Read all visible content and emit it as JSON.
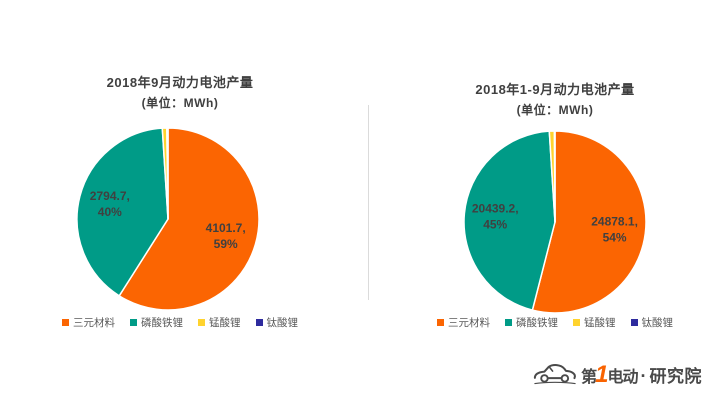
{
  "page": {
    "background": "#FFFFFF",
    "divider_color": "#DBDBDB",
    "text_color": "#404040"
  },
  "chart_data": [
    {
      "type": "pie",
      "title": "2018年9月动力电池产量",
      "subtitle": "(单位：MWh)",
      "unit": "MWh",
      "legend_position": "bottom",
      "slices": [
        {
          "label": "三元材料",
          "slug": "ternary-material",
          "value": 4101.7,
          "percent": 59,
          "color": "#FB6502",
          "label_lines": [
            "4101.7,",
            "59%"
          ]
        },
        {
          "label": "磷酸铁锂",
          "slug": "lithium-iron-phosphate",
          "value": 2794.7,
          "percent": 40,
          "color": "#009B87",
          "label_lines": [
            "2794.7,",
            "40%"
          ]
        },
        {
          "label": "锰酸锂",
          "slug": "lithium-manganate",
          "value": null,
          "percent": 0.8,
          "color": "#FFD32E"
        },
        {
          "label": "钛酸锂",
          "slug": "lithium-titanate",
          "value": null,
          "percent": 0.2,
          "color": "#2E2B9E"
        }
      ]
    },
    {
      "type": "pie",
      "title": "2018年1-9月动力电池产量",
      "subtitle": "(单位：MWh)",
      "unit": "MWh",
      "legend_position": "bottom",
      "slices": [
        {
          "label": "三元材料",
          "slug": "ternary-material",
          "value": 24878.1,
          "percent": 54,
          "color": "#FB6502",
          "label_lines": [
            "24878.1,",
            "54%"
          ]
        },
        {
          "label": "磷酸铁锂",
          "slug": "lithium-iron-phosphate",
          "value": 20439.2,
          "percent": 45,
          "color": "#009B87",
          "label_lines": [
            "20439.2,",
            "45%"
          ]
        },
        {
          "label": "锰酸锂",
          "slug": "lithium-manganate",
          "value": null,
          "percent": 0.9,
          "color": "#FFD32E"
        },
        {
          "label": "钛酸锂",
          "slug": "lithium-titanate",
          "value": null,
          "percent": 0.1,
          "color": "#2E2B9E"
        }
      ]
    }
  ],
  "logo": {
    "brand_prefix": "第",
    "brand_one": "1",
    "brand_suffix": "电动",
    "separator": "·",
    "org": "研究院",
    "text_color": "#4A4A4A",
    "accent_color": "#F96301"
  }
}
